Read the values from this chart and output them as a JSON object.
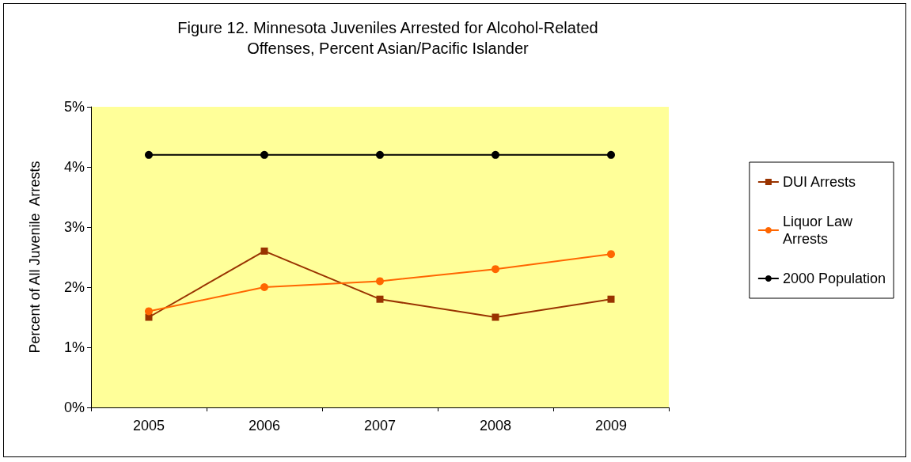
{
  "chart_data": {
    "type": "line",
    "title": "Figure 12. Minnesota Juveniles Arrested for Alcohol-Related\nOffenses, Percent Asian/Pacific Islander",
    "ylabel": "Percent of All Juvenile  Arrests",
    "categories": [
      "2005",
      "2006",
      "2007",
      "2008",
      "2009"
    ],
    "series": [
      {
        "name": "DUI Arrests",
        "color": "#993300",
        "marker": "square",
        "values": [
          1.5,
          2.6,
          1.8,
          1.5,
          1.8
        ]
      },
      {
        "name": "Liquor Law\nArrests",
        "color": "#ff6600",
        "marker": "circle",
        "values": [
          1.6,
          2.0,
          2.1,
          2.3,
          2.55
        ]
      },
      {
        "name": "2000 Population",
        "color": "#000000",
        "marker": "circle",
        "values": [
          4.2,
          4.2,
          4.2,
          4.2,
          4.2
        ]
      }
    ],
    "ylim": [
      0,
      5
    ],
    "yticks": [
      {
        "value": 0,
        "label": "0%"
      },
      {
        "value": 1,
        "label": "1%"
      },
      {
        "value": 2,
        "label": "2%"
      },
      {
        "value": 3,
        "label": "3%"
      },
      {
        "value": 4,
        "label": "4%"
      },
      {
        "value": 5,
        "label": "5%"
      }
    ],
    "grid": false,
    "legend": "right"
  }
}
